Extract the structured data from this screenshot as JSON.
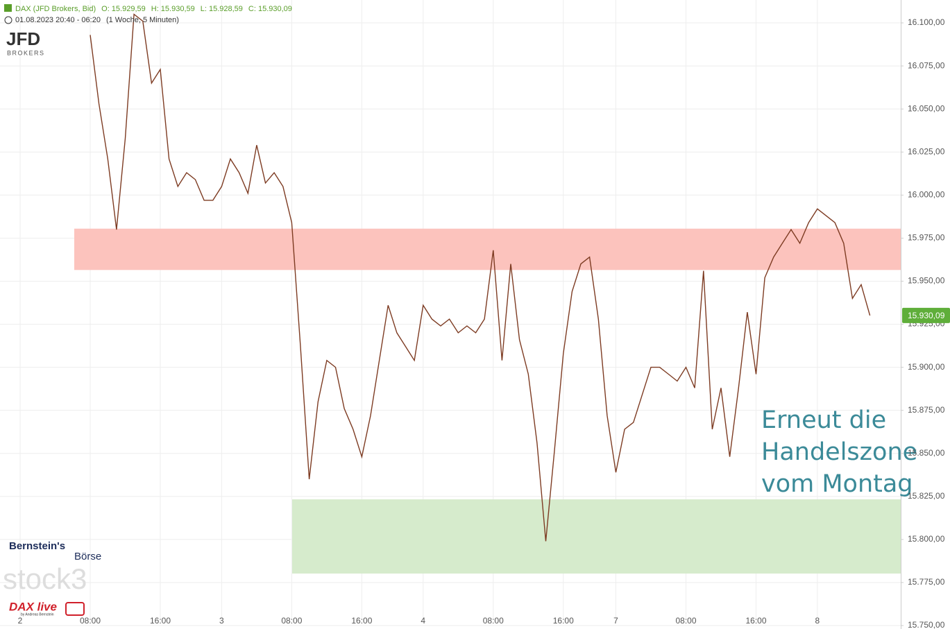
{
  "header": {
    "instrument": "DAX (JFD Brokers, Bid)",
    "open": "O: 15.929,59",
    "high": "H: 15.930,59",
    "low": "L: 15.928,59",
    "close": "C: 15.930,09",
    "range": "01.08.2023 20:40 - 06:20",
    "interval": "(1 Woche, 5 Minuten)"
  },
  "logos": {
    "broker": "JFD",
    "broker_sub": "BROKERS",
    "bernstein": "Bernstein's",
    "boerse": "Börse",
    "stock3": "stock3",
    "daxlive": "DAX live",
    "daxlive_sub": "by Andreas Bernstein"
  },
  "chart_data": {
    "type": "line",
    "color": "#7d3b22",
    "grid": true,
    "categories": [
      "2",
      null,
      null,
      null,
      null,
      null,
      null,
      null,
      "08:00",
      null,
      null,
      null,
      null,
      null,
      null,
      null,
      "16:00",
      null,
      null,
      null,
      null,
      null,
      null,
      "3",
      null,
      null,
      null,
      null,
      null,
      null,
      null,
      "08:00",
      null,
      null,
      null,
      null,
      null,
      null,
      null,
      "16:00",
      null,
      null,
      null,
      null,
      null,
      null,
      "4",
      null,
      null,
      null,
      null,
      null,
      null,
      null,
      "08:00",
      null,
      null,
      null,
      null,
      null,
      null,
      null,
      "16:00",
      null,
      null,
      null,
      null,
      null,
      "7",
      null,
      null,
      null,
      null,
      null,
      null,
      null,
      "08:00",
      null,
      null,
      null,
      null,
      null,
      null,
      null,
      "16:00",
      null,
      null,
      null,
      null,
      null,
      null,
      "8",
      null,
      null,
      null,
      null,
      null,
      null
    ],
    "values": [
      null,
      null,
      null,
      null,
      null,
      null,
      null,
      null,
      16093,
      16053,
      16021,
      15980,
      16033,
      16105,
      16101,
      16065,
      16073,
      16021,
      16005,
      16013,
      16009,
      15997,
      15997,
      16005,
      16021,
      16013,
      16001,
      16029,
      16007,
      16013,
      16005,
      15984,
      15912,
      15835,
      15880,
      15904,
      15900,
      15876,
      15864,
      15848,
      15872,
      15904,
      15936,
      15920,
      15912,
      15904,
      15936,
      15928,
      15924,
      15928,
      15920,
      15924,
      15920,
      15928,
      15968,
      15904,
      15960,
      15916,
      15896,
      15856,
      15799,
      15852,
      15908,
      15944,
      15960,
      15964,
      15928,
      15872,
      15839,
      15864,
      15868,
      15884,
      15900,
      15900,
      15896,
      15892,
      15900,
      15888,
      15956,
      15864,
      15888,
      15848,
      15888,
      15932,
      15896,
      15952,
      15964,
      15972,
      15980,
      15972,
      15984,
      15992,
      15988,
      15984,
      15972,
      15940,
      15948,
      15930.09
    ],
    "last_label": "15.930,09",
    "last_color": "#5fae3a",
    "ylim": [
      15748,
      16113.3
    ],
    "yticks": [
      {
        "value": 15750,
        "label": "15.750,00"
      },
      {
        "value": 15775,
        "label": "15.775,00"
      },
      {
        "value": 15800,
        "label": "15.800,00"
      },
      {
        "value": 15825,
        "label": "15.825,00"
      },
      {
        "value": 15850,
        "label": "15.850,00"
      },
      {
        "value": 15875,
        "label": "15.875,00"
      },
      {
        "value": 15900,
        "label": "15.900,00"
      },
      {
        "value": 15925,
        "label": "15.925,00"
      },
      {
        "value": 15950,
        "label": "15.950,00"
      },
      {
        "value": 15975,
        "label": "15.975,00"
      },
      {
        "value": 16000,
        "label": "16.000,00"
      },
      {
        "value": 16025,
        "label": "16.025,00"
      },
      {
        "value": 16050,
        "label": "16.050,00"
      },
      {
        "value": 16075,
        "label": "16.075,00"
      },
      {
        "value": 16100,
        "label": "16.100,00"
      }
    ],
    "zones": [
      {
        "range": [
          15956.5,
          15980.5
        ],
        "color": "#fcc3bd"
      },
      {
        "range": [
          15780.2,
          15823.3
        ],
        "color": "#d6ebcc"
      }
    ],
    "annotation": [
      "Erneut die",
      "Handelszone",
      "vom Montag"
    ]
  }
}
